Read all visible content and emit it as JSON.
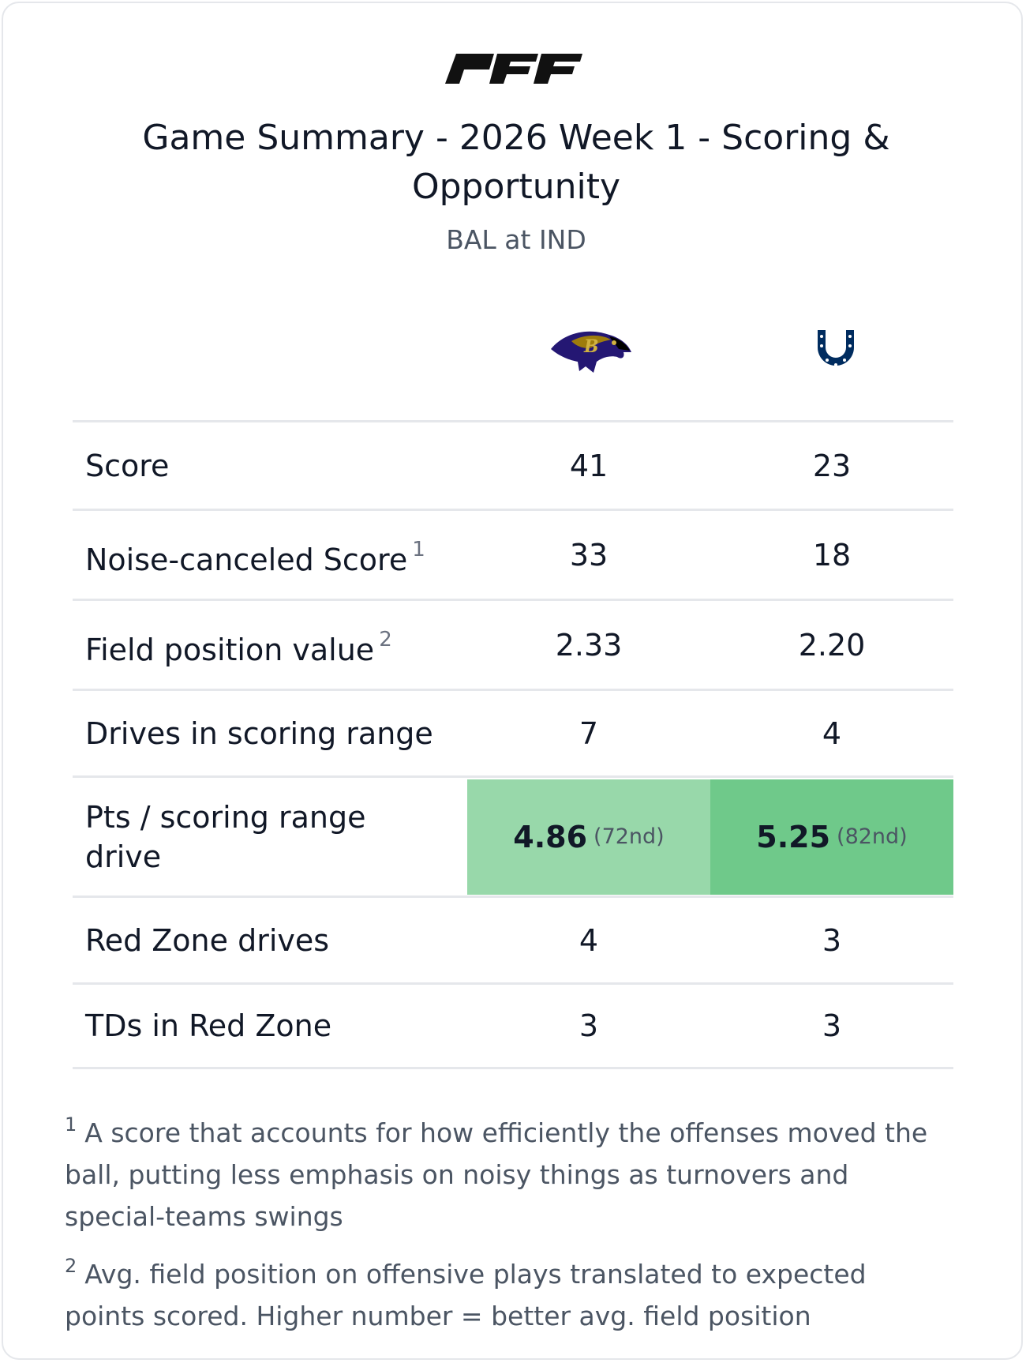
{
  "brand": {
    "logo_text": "PFF"
  },
  "header": {
    "title": "Game Summary - 2026 Week 1 - Scoring & Opportunity",
    "subtitle": "BAL at IND"
  },
  "teams": [
    {
      "abbr": "BAL",
      "icon": "ravens-logo-icon"
    },
    {
      "abbr": "IND",
      "icon": "colts-horseshoe-icon"
    }
  ],
  "colors": {
    "highlight_bal": "#98d8aa",
    "highlight_ind": "#6fc98a",
    "border": "#e5e7eb"
  },
  "rows": [
    {
      "label": "Score",
      "note": "",
      "bal": "41",
      "ind": "23"
    },
    {
      "label": "Noise-canceled Score",
      "note": "1",
      "bal": "33",
      "ind": "18"
    },
    {
      "label": "Field position value",
      "note": "2",
      "bal": "2.33",
      "ind": "2.20"
    },
    {
      "label": "Drives in scoring range",
      "note": "",
      "bal": "7",
      "ind": "4"
    },
    {
      "label": "Pts / scoring range drive",
      "note": "",
      "bal": "4.86",
      "bal_rank": "(72nd)",
      "ind": "5.25",
      "ind_rank": "(82nd)"
    },
    {
      "label": "Red Zone drives",
      "note": "",
      "bal": "4",
      "ind": "3"
    },
    {
      "label": "TDs in Red Zone",
      "note": "",
      "bal": "3",
      "ind": "3"
    }
  ],
  "footnotes": [
    {
      "marker": "1",
      "text": "A score that accounts for how efficiently the offenses moved the ball, putting less emphasis on noisy things as turnovers and special-teams swings"
    },
    {
      "marker": "2",
      "text": "Avg. field position on offensive plays translated to expected points scored. Higher number = better avg. field position"
    }
  ]
}
